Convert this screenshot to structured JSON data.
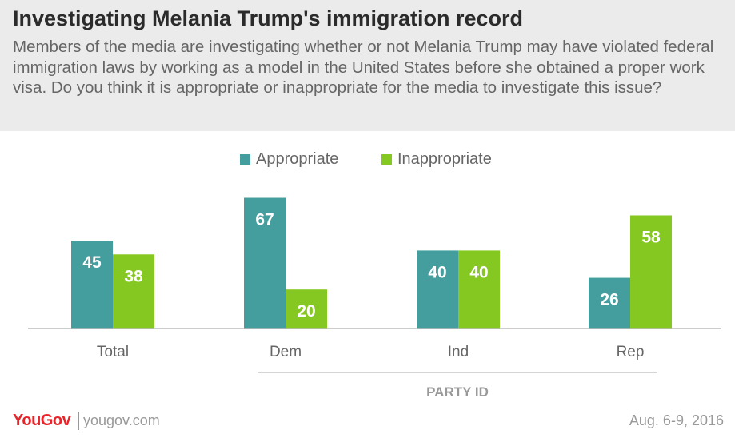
{
  "header": {
    "title": "Investigating Melania Trump's immigration record",
    "subtitle": "Members of the media are investigating whether or not Melania Trump may have violated federal immigration laws by working as a model in the United States before she obtained a proper work visa. Do you think it is appropriate or inappropriate for the media to investigate this issue?"
  },
  "chart_data": {
    "type": "bar",
    "categories": [
      "Total",
      "Dem",
      "Ind",
      "Rep"
    ],
    "series": [
      {
        "name": "Appropriate",
        "values": [
          45,
          67,
          40,
          26
        ],
        "color": "#449e9e"
      },
      {
        "name": "Inappropriate",
        "values": [
          38,
          20,
          40,
          58
        ],
        "color": "#86c822"
      }
    ],
    "group_label": "PARTY ID",
    "legend_position": "top-center",
    "grid": false,
    "ylim": [
      0,
      70
    ]
  },
  "footer": {
    "logo": "YouGov",
    "site": "yougov.com",
    "date": "Aug. 6-9, 2016"
  }
}
